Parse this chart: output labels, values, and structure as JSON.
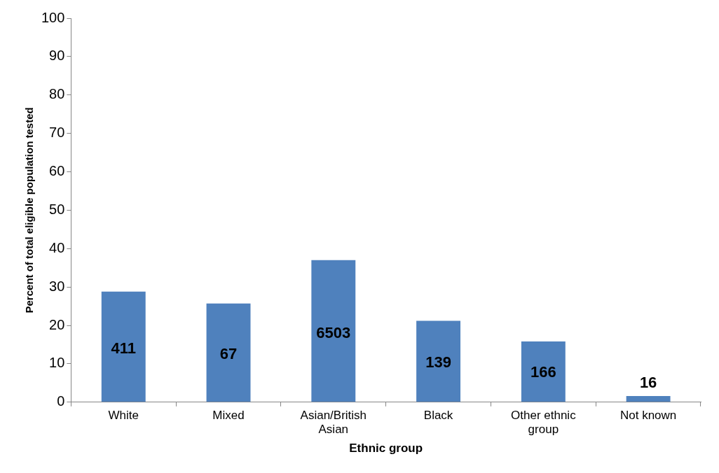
{
  "chart_data": {
    "type": "bar",
    "xlabel": "Ethnic group",
    "ylabel": "Percent of total eligible population tested",
    "categories": [
      "White",
      "Mixed",
      "Asian/British Asian",
      "Black",
      "Other ethnic group",
      "Not known"
    ],
    "values": [
      28.8,
      25.7,
      37.0,
      21.2,
      15.8,
      1.6
    ],
    "annotations": [
      "411",
      "67",
      "6503",
      "139",
      "166",
      "16"
    ],
    "color": "#4f81bd",
    "ylim": [
      0,
      100
    ],
    "yticks": [
      0,
      10,
      20,
      30,
      40,
      50,
      60,
      70,
      80,
      90,
      100
    ],
    "grid": false,
    "legend": false
  }
}
